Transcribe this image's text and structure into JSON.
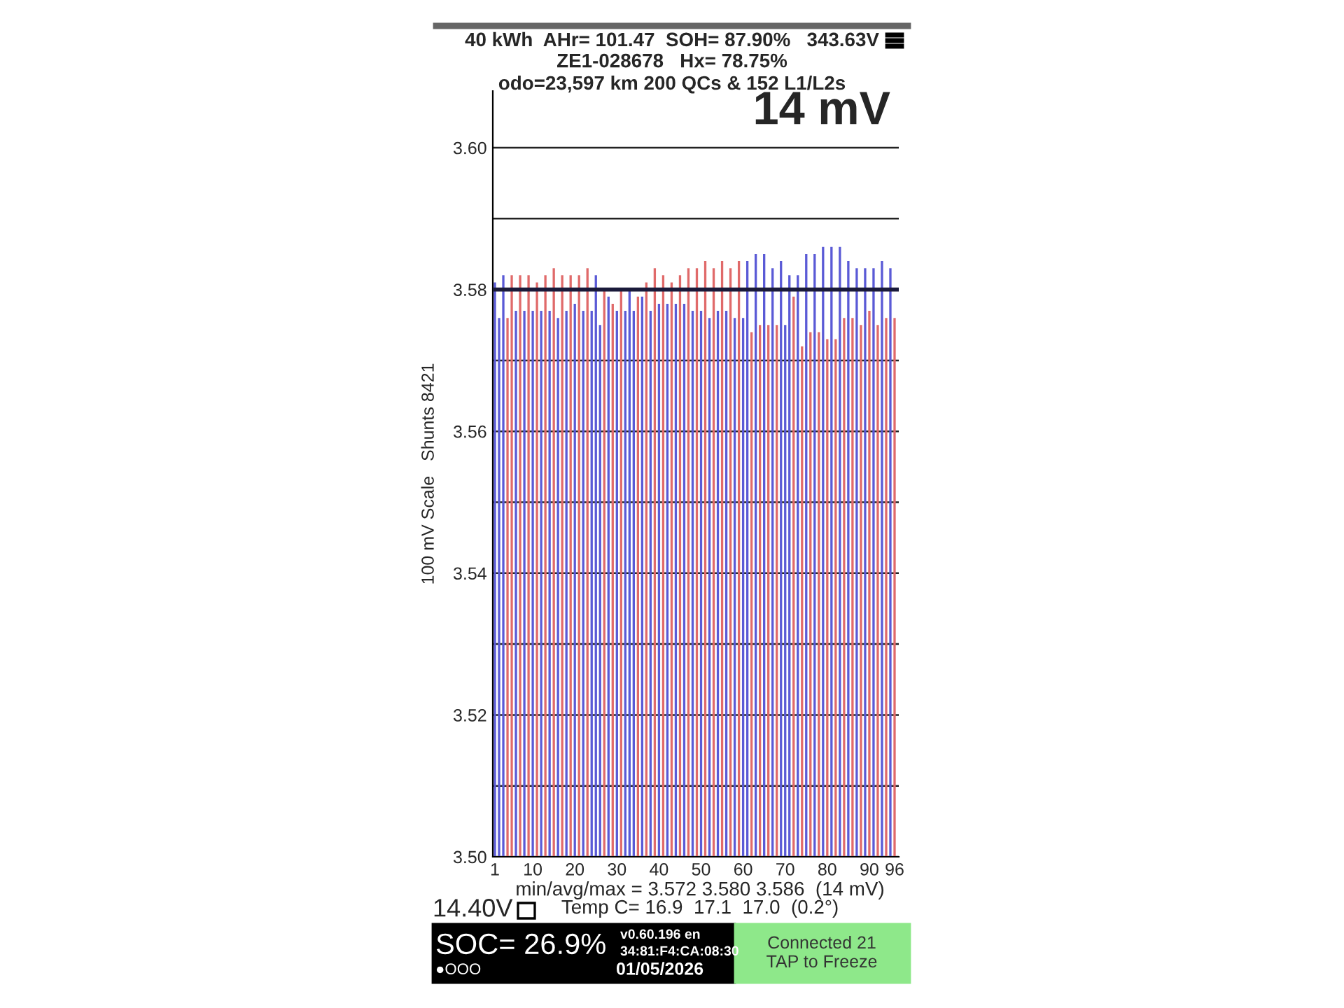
{
  "chart_data": {
    "type": "bar",
    "title": "40 kWh  AHr= 101.47  SOH= 87.90%   343.63V",
    "subtitle": "ZE1-028678   Hx= 78.75%\nodo=23,597 km 200 QCs & 152 L1/L2s",
    "ylabel": "100 mV Scale   Shunts 8421",
    "x": [
      1,
      2,
      3,
      4,
      5,
      6,
      7,
      8,
      9,
      10,
      11,
      12,
      13,
      14,
      15,
      16,
      17,
      18,
      19,
      20,
      21,
      22,
      23,
      24,
      25,
      26,
      27,
      28,
      29,
      30,
      31,
      32,
      33,
      34,
      35,
      36,
      37,
      38,
      39,
      40,
      41,
      42,
      43,
      44,
      45,
      46,
      47,
      48,
      49,
      50,
      51,
      52,
      53,
      54,
      55,
      56,
      57,
      58,
      59,
      60,
      61,
      62,
      63,
      64,
      65,
      66,
      67,
      68,
      69,
      70,
      71,
      72,
      73,
      74,
      75,
      76,
      77,
      78,
      79,
      80,
      81,
      82,
      83,
      84,
      85,
      86,
      87,
      88,
      89,
      90,
      91,
      92,
      93,
      94,
      95,
      96
    ],
    "values": [
      3.581,
      3.576,
      3.582,
      3.576,
      3.582,
      3.577,
      3.582,
      3.577,
      3.582,
      3.577,
      3.581,
      3.577,
      3.582,
      3.577,
      3.583,
      3.576,
      3.582,
      3.577,
      3.582,
      3.578,
      3.582,
      3.577,
      3.583,
      3.577,
      3.582,
      3.575,
      3.58,
      3.579,
      3.578,
      3.577,
      3.58,
      3.577,
      3.58,
      3.577,
      3.579,
      3.579,
      3.581,
      3.577,
      3.583,
      3.578,
      3.582,
      3.578,
      3.581,
      3.578,
      3.582,
      3.578,
      3.583,
      3.577,
      3.583,
      3.577,
      3.584,
      3.576,
      3.583,
      3.577,
      3.584,
      3.577,
      3.583,
      3.576,
      3.584,
      3.576,
      3.584,
      3.574,
      3.585,
      3.575,
      3.585,
      3.575,
      3.583,
      3.575,
      3.584,
      3.575,
      3.582,
      3.579,
      3.582,
      3.572,
      3.585,
      3.574,
      3.585,
      3.574,
      3.586,
      3.573,
      3.586,
      3.573,
      3.586,
      3.576,
      3.584,
      3.576,
      3.583,
      3.575,
      3.583,
      3.577,
      3.583,
      3.575,
      3.584,
      3.576,
      3.583,
      3.576
    ],
    "colors": [
      "#5a5ad6",
      "#5a5ad6",
      "#5a5ad6",
      "#e06a6a",
      "#e06a6a",
      "#5a5ad6",
      "#e06a6a",
      "#5a5ad6",
      "#e06a6a",
      "#5a5ad6",
      "#e06a6a",
      "#5a5ad6",
      "#e06a6a",
      "#5a5ad6",
      "#e06a6a",
      "#5a5ad6",
      "#e06a6a",
      "#5a5ad6",
      "#e06a6a",
      "#5a5ad6",
      "#e06a6a",
      "#5a5ad6",
      "#e06a6a",
      "#5a5ad6",
      "#5a5ad6",
      "#5a5ad6",
      "#e06a6a",
      "#5a5ad6",
      "#e06a6a",
      "#5a5ad6",
      "#e06a6a",
      "#5a5ad6",
      "#5a5ad6",
      "#5a5ad6",
      "#e06a6a",
      "#5a5ad6",
      "#e06a6a",
      "#5a5ad6",
      "#e06a6a",
      "#5a5ad6",
      "#e06a6a",
      "#5a5ad6",
      "#e06a6a",
      "#5a5ad6",
      "#e06a6a",
      "#5a5ad6",
      "#e06a6a",
      "#5a5ad6",
      "#e06a6a",
      "#5a5ad6",
      "#e06a6a",
      "#5a5ad6",
      "#e06a6a",
      "#5a5ad6",
      "#e06a6a",
      "#5a5ad6",
      "#e06a6a",
      "#5a5ad6",
      "#e06a6a",
      "#5a5ad6",
      "#5a5ad6",
      "#e06a6a",
      "#5a5ad6",
      "#e06a6a",
      "#5a5ad6",
      "#e06a6a",
      "#5a5ad6",
      "#e06a6a",
      "#5a5ad6",
      "#5a5ad6",
      "#5a5ad6",
      "#e06a6a",
      "#5a5ad6",
      "#e06a6a",
      "#5a5ad6",
      "#e06a6a",
      "#5a5ad6",
      "#e06a6a",
      "#5a5ad6",
      "#e06a6a",
      "#5a5ad6",
      "#e06a6a",
      "#5a5ad6",
      "#e06a6a",
      "#5a5ad6",
      "#e06a6a",
      "#5a5ad6",
      "#e06a6a",
      "#5a5ad6",
      "#e06a6a",
      "#5a5ad6",
      "#e06a6a",
      "#5a5ad6",
      "#e06a6a",
      "#5a5ad6",
      "#e06a6a"
    ],
    "xlim": [
      0.5,
      97
    ],
    "xticks": [
      1,
      {
        "value": 5,
        "label": null
      },
      10,
      {
        "value": 15,
        "label": null
      },
      20,
      {
        "value": 25,
        "label": null
      },
      30,
      {
        "value": 35,
        "label": null
      },
      40,
      {
        "value": 45,
        "label": null
      },
      50,
      {
        "value": 55,
        "label": null
      },
      60,
      {
        "value": 65,
        "label": null
      },
      70,
      {
        "value": 75,
        "label": null
      },
      80,
      {
        "value": 85,
        "label": null
      },
      90,
      96
    ],
    "ylim": [
      3.5,
      3.608
    ],
    "yticks": [
      {
        "value": 3.5,
        "label": "3.50"
      },
      {
        "value": 3.51,
        "label": null
      },
      3.52,
      {
        "value": 3.53,
        "label": null
      },
      3.54,
      {
        "value": 3.55,
        "label": null
      },
      3.56,
      {
        "value": 3.57,
        "label": null
      },
      3.58,
      {
        "value": 3.59,
        "label": null
      },
      {
        "value": 3.6,
        "label": "3.60"
      }
    ],
    "grid": "y",
    "ref_lines": [
      {
        "axis": "y",
        "value": 3.58,
        "label": null,
        "color": "#1a1a3a"
      }
    ],
    "annotations": [
      "14 mV",
      "min/avg/max = 3.572 3.580 3.586  (14 mV)",
      "Temp C= 16.9  17.1  17.0  (0.2°)",
      "14.40V",
      "SOC= 26.9%",
      "●OOO",
      "v0.60.196 en",
      "34:81:F4:CA:08:30",
      "01/05/2026",
      "Connected 21\nTAP to Freeze"
    ]
  }
}
